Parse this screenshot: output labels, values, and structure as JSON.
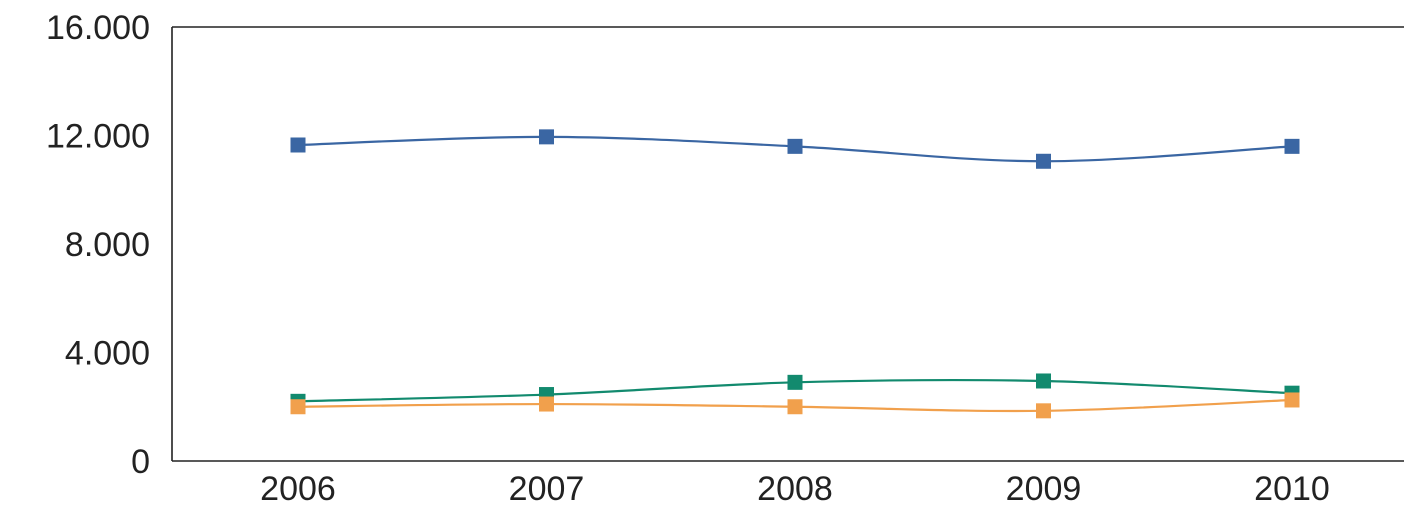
{
  "chart_data": {
    "type": "line",
    "title": "",
    "xlabel": "",
    "ylabel": "",
    "categories": [
      "2006",
      "2007",
      "2008",
      "2009",
      "2010"
    ],
    "ylim": [
      0,
      16000
    ],
    "yticks": [
      0,
      4000,
      8000,
      12000,
      16000
    ],
    "ytick_labels": [
      "0",
      "4.000",
      "8.000",
      "12.000",
      "16.000"
    ],
    "grid": false,
    "legend": "none",
    "series": [
      {
        "values": [
          11650,
          11950,
          11600,
          11050,
          11600
        ],
        "color": "#3a66a3"
      },
      {
        "values": [
          2200,
          2450,
          2900,
          2950,
          2500
        ],
        "color": "#128a6e"
      },
      {
        "values": [
          2000,
          2100,
          2000,
          1850,
          2250
        ],
        "color": "#f1a04c"
      }
    ]
  }
}
